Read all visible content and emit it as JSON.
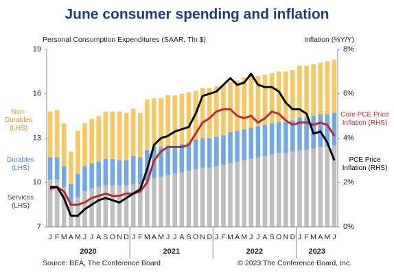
{
  "chart_data": {
    "type": "bar-line",
    "title": "June consumer spending and inflation",
    "y_label": "Personal Consumption Expenditures (SAAR, Tln $)",
    "y2_label": "Inflation (%Y/Y)",
    "source": "Source: BEA, The Conference Board",
    "copyright": "© 2023 The Conference Board, Inc.",
    "categories": [
      "J",
      "F",
      "M",
      "A",
      "M",
      "J",
      "J",
      "A",
      "S",
      "O",
      "N",
      "D",
      "J",
      "F",
      "M",
      "A",
      "M",
      "J",
      "J",
      "A",
      "S",
      "O",
      "N",
      "D",
      "J",
      "F",
      "M",
      "A",
      "M",
      "J",
      "J",
      "A",
      "S",
      "O",
      "N",
      "D",
      "J",
      "F",
      "M",
      "A",
      "M",
      "J"
    ],
    "years": [
      "2020",
      "2021",
      "2022",
      "2023"
    ],
    "ylim": [
      7,
      19
    ],
    "yticks": [
      7,
      10,
      13,
      16,
      19
    ],
    "y2lim": [
      0,
      8
    ],
    "y2ticks": [
      {
        "value": 0,
        "label": "0%"
      },
      {
        "value": 2,
        "label": "2%"
      },
      {
        "value": 4,
        "label": "4%"
      },
      {
        "value": 6,
        "label": "6%"
      },
      {
        "value": 8,
        "label": "8%"
      }
    ],
    "series": [
      {
        "name": "Services\n(LHS)",
        "color": "#bfbfbf",
        "kind": "bar",
        "values": [
          10.2,
          10.2,
          9.7,
          8.6,
          9.0,
          9.4,
          9.6,
          9.7,
          9.8,
          9.8,
          9.8,
          9.8,
          9.9,
          9.9,
          10.1,
          10.3,
          10.4,
          10.5,
          10.6,
          10.7,
          10.8,
          10.9,
          11.0,
          11.0,
          11.1,
          11.2,
          11.3,
          11.4,
          11.5,
          11.6,
          11.7,
          11.8,
          11.9,
          12.0,
          12.0,
          12.1,
          12.2,
          12.2,
          12.3,
          12.4,
          12.4,
          12.5
        ]
      },
      {
        "name": "Durables\n(LHS)",
        "color": "#71a9e6",
        "kind": "bar",
        "values": [
          1.5,
          1.5,
          1.4,
          1.3,
          1.6,
          1.7,
          1.7,
          1.7,
          1.8,
          1.8,
          1.7,
          1.7,
          1.9,
          1.8,
          2.1,
          2.1,
          2.0,
          2.0,
          1.9,
          1.9,
          1.9,
          2.0,
          2.0,
          2.0,
          2.0,
          2.0,
          2.1,
          2.1,
          2.1,
          2.1,
          2.1,
          2.1,
          2.1,
          2.1,
          2.1,
          2.1,
          2.2,
          2.2,
          2.2,
          2.2,
          2.2,
          2.2
        ]
      },
      {
        "name": "Non-\nDurables\n(LHS)",
        "color": "#f6c762",
        "kind": "bar",
        "values": [
          3.1,
          3.2,
          2.9,
          2.2,
          2.9,
          2.9,
          3.0,
          3.1,
          3.2,
          3.2,
          3.3,
          3.2,
          3.2,
          3.0,
          3.4,
          3.3,
          3.3,
          3.4,
          3.4,
          3.4,
          3.4,
          3.3,
          3.4,
          3.4,
          3.4,
          3.4,
          3.4,
          3.4,
          3.5,
          3.5,
          3.4,
          3.4,
          3.4,
          3.4,
          3.4,
          3.4,
          3.5,
          3.5,
          3.5,
          3.5,
          3.6,
          3.6
        ]
      },
      {
        "name": "Core PCE Price\nInflation (RHS)",
        "color": "#c0282d",
        "kind": "line",
        "axis": "y2",
        "values": [
          1.7,
          1.8,
          1.6,
          1.0,
          1.0,
          1.1,
          1.3,
          1.4,
          1.5,
          1.4,
          1.4,
          1.5,
          1.5,
          1.6,
          2.0,
          3.0,
          3.4,
          3.6,
          3.6,
          3.6,
          3.7,
          4.2,
          4.7,
          4.9,
          5.2,
          5.3,
          5.3,
          5.0,
          4.9,
          5.0,
          4.7,
          4.9,
          5.2,
          5.1,
          4.8,
          4.6,
          4.7,
          4.7,
          4.6,
          4.7,
          4.6,
          4.1
        ]
      },
      {
        "name": "PCE Price\nInflation (RHS)",
        "color": "#000000",
        "kind": "line",
        "axis": "y2",
        "values": [
          1.8,
          1.8,
          1.3,
          0.5,
          0.5,
          0.8,
          1.0,
          1.2,
          1.3,
          1.2,
          1.1,
          1.3,
          1.5,
          1.7,
          2.6,
          3.7,
          4.0,
          4.1,
          4.3,
          4.4,
          4.5,
          5.1,
          5.9,
          6.0,
          6.1,
          6.4,
          6.7,
          6.4,
          6.5,
          6.9,
          6.4,
          6.3,
          6.3,
          6.1,
          5.6,
          5.3,
          5.3,
          5.1,
          4.2,
          4.3,
          3.8,
          3.0
        ]
      }
    ]
  }
}
